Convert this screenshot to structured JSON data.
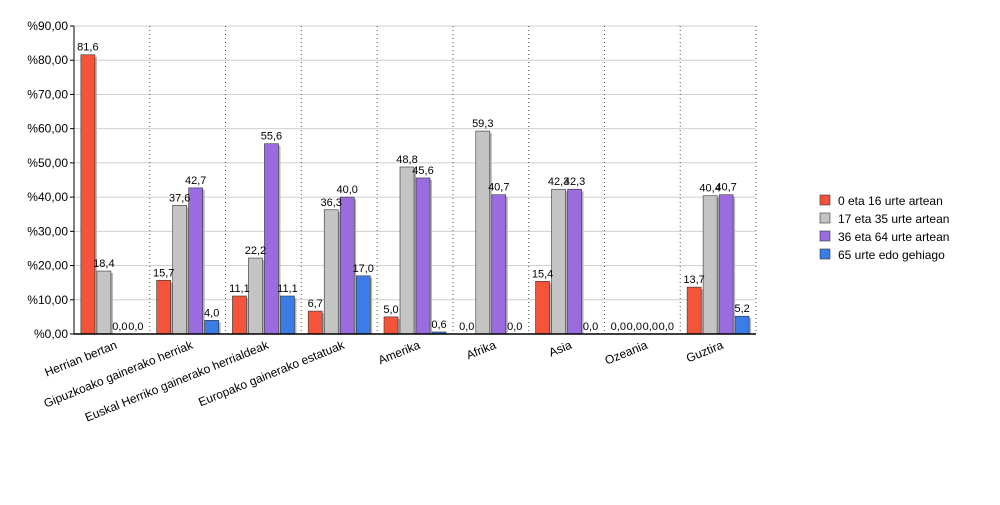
{
  "chart_data": {
    "type": "bar",
    "title": "",
    "xlabel": "",
    "ylabel": "",
    "y_prefix": "%",
    "y_format_decimals": 2,
    "ylim": [
      0,
      90
    ],
    "yticks": [
      0,
      10,
      20,
      30,
      40,
      50,
      60,
      70,
      80,
      90
    ],
    "ytick_labels": [
      "%0,00",
      "%10,00",
      "%20,00",
      "%30,00",
      "%40,00",
      "%50,00",
      "%60,00",
      "%70,00",
      "%80,00",
      "%90,00"
    ],
    "grid": "horizontal solid, vertical dotted",
    "legend_position": "right",
    "categories": [
      "Herrian bertan",
      "Gipuzkoako gainerako herriak",
      "Euskal Herriko gainerako herrialdeak",
      "Europako gainerako estatuak",
      "Amerika",
      "Afrika",
      "Asia",
      "Ozeania",
      "Guztira"
    ],
    "series": [
      {
        "name": "0 eta 16 urte artean",
        "color": "#f4553a",
        "values": [
          81.6,
          15.7,
          11.1,
          6.7,
          5.0,
          0.0,
          15.4,
          0.0,
          13.7
        ],
        "labels": [
          "81,6",
          "15,7",
          "11,1",
          "6,7",
          "5,0",
          "0,0",
          "15,4",
          "0,0",
          "13,7"
        ]
      },
      {
        "name": "17 eta 35 urte artean",
        "color": "#c4c4c4",
        "values": [
          18.4,
          37.6,
          22.2,
          36.3,
          48.8,
          59.3,
          42.3,
          0.0,
          40.4
        ],
        "labels": [
          "18,4",
          "37,6",
          "22,2",
          "36,3",
          "48,8",
          "59,3",
          "42,3",
          "0,0",
          "40,4"
        ]
      },
      {
        "name": "36 eta 64 urte artean",
        "color": "#9a6ce0",
        "values": [
          0.0,
          42.7,
          55.6,
          40.0,
          45.6,
          40.7,
          42.3,
          0.0,
          40.7
        ],
        "labels": [
          "0,0",
          "42,7",
          "55,6",
          "40,0",
          "45,6",
          "40,7",
          "42,3",
          "0,0",
          "40,7"
        ]
      },
      {
        "name": "65 urte edo gehiago",
        "color": "#3b7de6",
        "values": [
          0.0,
          4.0,
          11.1,
          17.0,
          0.6,
          0.0,
          0.0,
          0.0,
          5.2
        ],
        "labels": [
          "0,0",
          "4,0",
          "11,1",
          "17,0",
          "0,6",
          "0,0",
          "0,0",
          "0,0",
          "5,2"
        ]
      }
    ]
  }
}
